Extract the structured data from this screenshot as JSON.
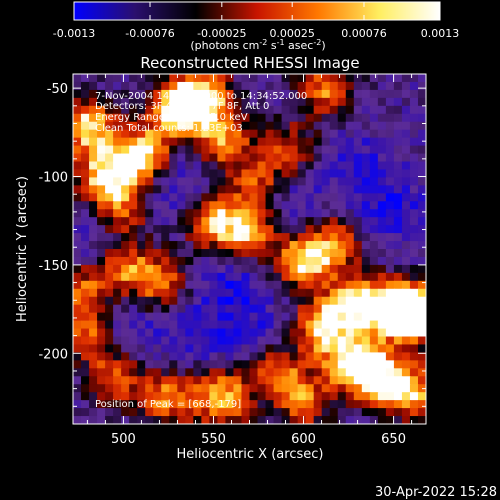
{
  "colorbar": {
    "stops": [
      "#0000ff",
      "#2a0f6e",
      "#000000",
      "#c81400",
      "#ff7800",
      "#ffee60",
      "#ffffff"
    ],
    "tick_labels": [
      "-0.0013",
      "-0.00076",
      "-0.00025",
      "0.00025",
      "0.00076",
      "0.0013"
    ],
    "units_prefix": "(photons cm",
    "units_sup1": "-2",
    "units_mid": " s",
    "units_sup2": "-1",
    "units_mid2": " asec",
    "units_sup3": "-2",
    "units_suffix": ")"
  },
  "title": "Reconstructed RHESSI Image",
  "annotations": {
    "time": "7-Nov-2004 14:34:12.000 to 14:34:52.000",
    "detectors": "Detectors: 3F 4F 5F 6F 7F 8F, Att 0",
    "energy": "Energy Range: 12.0 - 25.0 keV",
    "method": "Clean    Total counts: 1.23E+03",
    "peak": "Position of Peak = [668,-179]"
  },
  "footer_date": "30-Apr-2022 15:28",
  "chart_data": {
    "type": "heatmap",
    "title": "Reconstructed RHESSI Image",
    "xlabel": "Heliocentric X (arcsec)",
    "ylabel": "Heliocentric Y (arcsec)",
    "xlim": [
      472,
      668
    ],
    "ylim": [
      -240,
      -42
    ],
    "x_ticks": [
      500,
      550,
      600,
      650
    ],
    "y_ticks": [
      -50,
      -100,
      -150,
      -200
    ],
    "x_tick_labels": [
      "500",
      "550",
      "600",
      "650"
    ],
    "y_tick_labels": [
      "-50",
      "-100",
      "-150",
      "-200"
    ],
    "value_range": [
      -0.0013,
      0.0013
    ],
    "colormap": "blue-purple-black-red-yellow-white",
    "peak_position": [
      668,
      -179
    ],
    "bright_regions": [
      {
        "x": 480,
        "y": -72,
        "level": 0.9
      },
      {
        "x": 490,
        "y": -100,
        "level": 0.85
      },
      {
        "x": 510,
        "y": -88,
        "level": 1.0
      },
      {
        "x": 530,
        "y": -62,
        "level": 0.95
      },
      {
        "x": 545,
        "y": -55,
        "level": 0.9
      },
      {
        "x": 556,
        "y": -80,
        "level": 0.7
      },
      {
        "x": 500,
        "y": -120,
        "level": 0.55
      },
      {
        "x": 550,
        "y": -125,
        "level": 0.8
      },
      {
        "x": 570,
        "y": -132,
        "level": 0.7
      },
      {
        "x": 575,
        "y": -105,
        "level": 0.6
      },
      {
        "x": 592,
        "y": -85,
        "level": 0.55
      },
      {
        "x": 612,
        "y": -50,
        "level": 0.65
      },
      {
        "x": 600,
        "y": -148,
        "level": 0.85
      },
      {
        "x": 618,
        "y": -138,
        "level": 0.6
      },
      {
        "x": 500,
        "y": -150,
        "level": 0.7
      },
      {
        "x": 520,
        "y": -160,
        "level": 0.65
      },
      {
        "x": 478,
        "y": -165,
        "level": 0.6
      },
      {
        "x": 610,
        "y": -185,
        "level": 0.8
      },
      {
        "x": 630,
        "y": -172,
        "level": 0.9
      },
      {
        "x": 652,
        "y": -175,
        "level": 1.0
      },
      {
        "x": 664,
        "y": -178,
        "level": 1.0
      },
      {
        "x": 625,
        "y": -205,
        "level": 0.75
      },
      {
        "x": 640,
        "y": -212,
        "level": 0.95
      },
      {
        "x": 660,
        "y": -222,
        "level": 0.8
      },
      {
        "x": 585,
        "y": -210,
        "level": 0.65
      },
      {
        "x": 555,
        "y": -225,
        "level": 0.85
      },
      {
        "x": 525,
        "y": -225,
        "level": 0.7
      },
      {
        "x": 495,
        "y": -215,
        "level": 0.6
      },
      {
        "x": 480,
        "y": -190,
        "level": 0.55
      },
      {
        "x": 600,
        "y": -228,
        "level": 0.6
      }
    ],
    "dark_regions": [
      {
        "x": 490,
        "y": -140,
        "level": 0.9
      },
      {
        "x": 530,
        "y": -105,
        "level": 0.85
      },
      {
        "x": 590,
        "y": -110,
        "level": 0.85
      },
      {
        "x": 560,
        "y": -160,
        "level": 0.9
      },
      {
        "x": 540,
        "y": -190,
        "level": 0.75
      },
      {
        "x": 630,
        "y": -95,
        "level": 0.8
      },
      {
        "x": 650,
        "y": -120,
        "level": 0.85
      },
      {
        "x": 575,
        "y": -190,
        "level": 0.7
      },
      {
        "x": 505,
        "y": -185,
        "level": 0.6
      }
    ]
  }
}
